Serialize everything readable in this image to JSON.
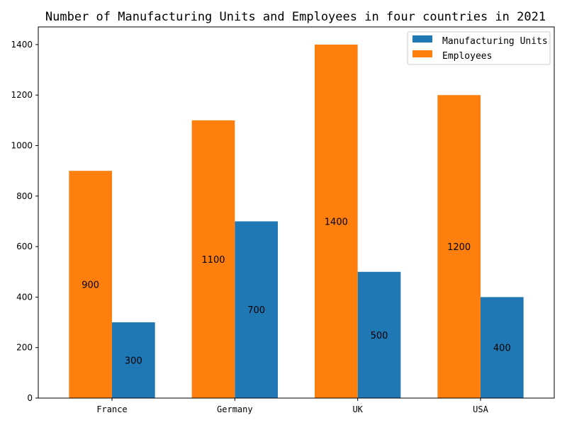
{
  "chart_data": {
    "type": "bar",
    "title": "Number of Manufacturing Units and Employees in four countries in 2021",
    "xlabel": "",
    "ylabel": "",
    "categories": [
      "France",
      "Germany",
      "UK",
      "USA"
    ],
    "series": [
      {
        "name": "Manufacturing Units",
        "values": [
          300,
          700,
          500,
          400
        ],
        "color": "#1f77b4"
      },
      {
        "name": "Employees",
        "values": [
          900,
          1100,
          1400,
          1200
        ],
        "color": "#ff7f0e"
      }
    ],
    "ylim": [
      0,
      1470
    ],
    "yticks": [
      0,
      200,
      400,
      600,
      800,
      1000,
      1200,
      1400
    ],
    "grid": false,
    "legend_position": "top-right",
    "data_labels": true
  }
}
